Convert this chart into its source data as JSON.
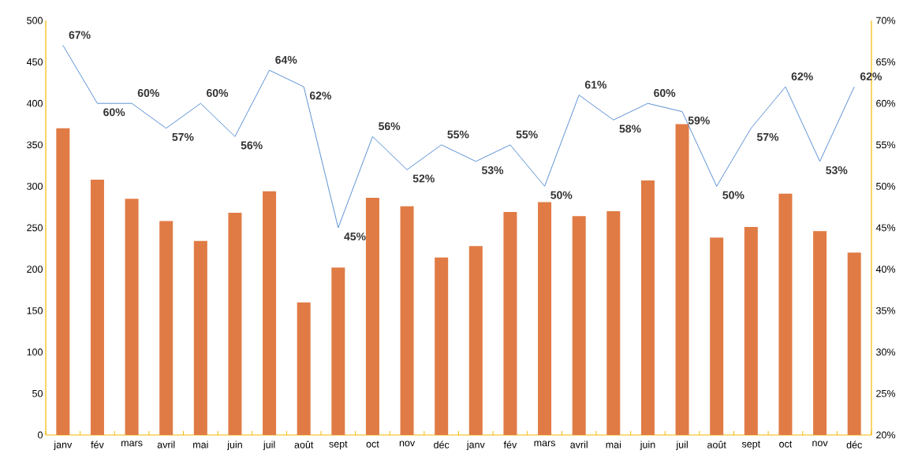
{
  "chart_data": {
    "type": "bar",
    "categories": [
      "janv",
      "fév",
      "mars",
      "avril",
      "mai",
      "juin",
      "juil",
      "août",
      "sept",
      "oct",
      "nov",
      "déc",
      "janv",
      "fév",
      "mars",
      "avril",
      "mai",
      "juin",
      "juil",
      "août",
      "sept",
      "oct",
      "nov",
      "déc"
    ],
    "series": [
      {
        "color": "#e07b45",
        "values": [
          370,
          308,
          285,
          258,
          234,
          268,
          294,
          160,
          202,
          286,
          276,
          214,
          228,
          269,
          281,
          264,
          270,
          307,
          375,
          238,
          251,
          291,
          246,
          220
        ]
      },
      {
        "type": "line",
        "axis": "y2",
        "color": "#4a86d0",
        "values": [
          67,
          60,
          60,
          57,
          60,
          56,
          64,
          62,
          45,
          56,
          52,
          55,
          53,
          55,
          50,
          61,
          58,
          60,
          59,
          50,
          57,
          62,
          53,
          62
        ],
        "value_labels": [
          "67%",
          "60%",
          "60%",
          "57%",
          "60%",
          "56%",
          "64%",
          "62%",
          "45%",
          "56%",
          "52%",
          "55%",
          "53%",
          "55%",
          "50%",
          "61%",
          "58%",
          "60%",
          "59%",
          "50%",
          "57%",
          "62%",
          "53%",
          "62%"
        ]
      }
    ],
    "ylim": [
      0,
      500
    ],
    "yticks": [
      0,
      50,
      100,
      150,
      200,
      250,
      300,
      350,
      400,
      450,
      500
    ],
    "y2lim": [
      20,
      70
    ],
    "y2ticks": [
      {
        "value": 20,
        "label": "20%"
      },
      {
        "value": 25,
        "label": "25%"
      },
      {
        "value": 30,
        "label": "30%"
      },
      {
        "value": 35,
        "label": "35%"
      },
      {
        "value": 40,
        "label": "40%"
      },
      {
        "value": 45,
        "label": "45%"
      },
      {
        "value": 50,
        "label": "50%"
      },
      {
        "value": 55,
        "label": "55%"
      },
      {
        "value": 60,
        "label": "60%"
      },
      {
        "value": 65,
        "label": "65%"
      },
      {
        "value": 70,
        "label": "70%"
      }
    ],
    "grid": false
  }
}
